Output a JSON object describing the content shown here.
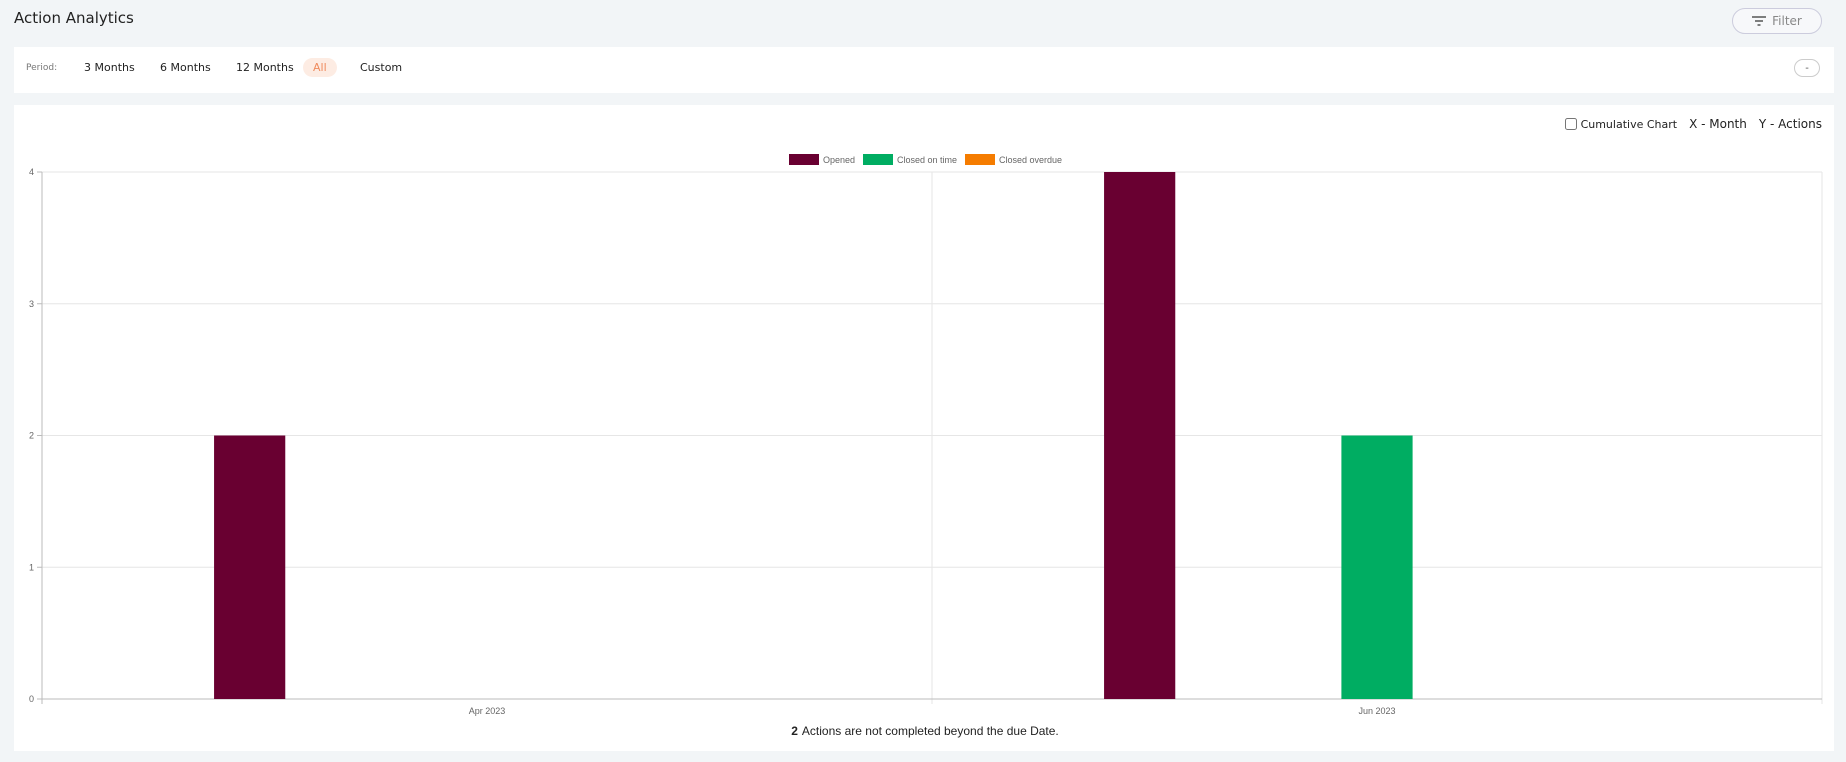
{
  "header": {
    "title": "Action Analytics",
    "filter_button": "Filter"
  },
  "period": {
    "label": "Period:",
    "options": [
      "3 Months",
      "6 Months",
      "12 Months",
      "All",
      "Custom"
    ],
    "selected": 3,
    "collapse_button": "-"
  },
  "chart_options": {
    "cumulative_label": "Cumulative Chart",
    "cumulative_checked": false,
    "x_label": "X - Month",
    "y_label": "Y - Actions"
  },
  "chart_data": {
    "type": "bar",
    "categories": [
      "Apr 2023",
      "Jun 2023"
    ],
    "series": [
      {
        "name": "Opened",
        "color": "#690031",
        "values": [
          2,
          4
        ]
      },
      {
        "name": "Closed on time",
        "color": "#00ad62",
        "values": [
          0,
          2
        ]
      },
      {
        "name": "Closed overdue",
        "color": "#f57c00",
        "values": [
          0,
          0
        ]
      }
    ],
    "ylim": [
      0,
      4
    ],
    "yticks": [
      0,
      1,
      2,
      3,
      4
    ],
    "grid": true,
    "legend": "top"
  },
  "footer": {
    "count": 2,
    "text": "Actions are not completed beyond the due Date."
  }
}
